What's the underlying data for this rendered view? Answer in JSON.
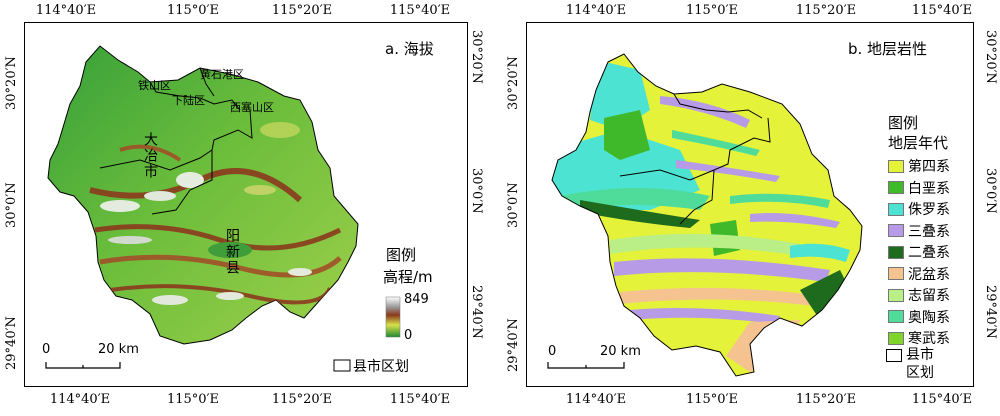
{
  "panel_a": {
    "title": "a. 海拔",
    "legend_title": "图例",
    "legend_subtitle": "高程/m",
    "elev_max": "849",
    "elev_min": "0",
    "scale_zero": "0",
    "scale_label": "20 km",
    "boundary_label": "县市区划",
    "county_labels": [
      "铁山区",
      "黄石港区",
      "下陆区",
      "西塞山区"
    ],
    "big_labels": [
      "大冶市",
      "阳新县"
    ],
    "colors": {
      "low": "#2e9a3a",
      "mid": "#9ccc3a",
      "high": "#8b3a1e",
      "peak": "#ffffff"
    }
  },
  "panel_b": {
    "title": "b. 地层岩性",
    "legend_title": "图例",
    "legend_subtitle": "地层年代",
    "scale_zero": "0",
    "scale_label": "20 km",
    "boundary_label": "县市区划",
    "strata": [
      {
        "name": "第四系",
        "color": "#e4f23a"
      },
      {
        "name": "白垩系",
        "color": "#3fb82a"
      },
      {
        "name": "侏罗系",
        "color": "#4de3d3"
      },
      {
        "name": "三叠系",
        "color": "#b79be6"
      },
      {
        "name": "二叠系",
        "color": "#1e6b1e"
      },
      {
        "name": "泥盆系",
        "color": "#f5c38f"
      },
      {
        "name": "志留系",
        "color": "#b9ef86"
      },
      {
        "name": "奥陶系",
        "color": "#4fdc9a"
      },
      {
        "name": "寒武系",
        "color": "#7fd32a"
      }
    ]
  },
  "axes": {
    "lon_ticks": [
      "114°40′E",
      "115°0′E",
      "115°20′E",
      "115°40′E"
    ],
    "lat_ticks": [
      "30°20′N",
      "30°0′N",
      "29°40′N"
    ]
  }
}
